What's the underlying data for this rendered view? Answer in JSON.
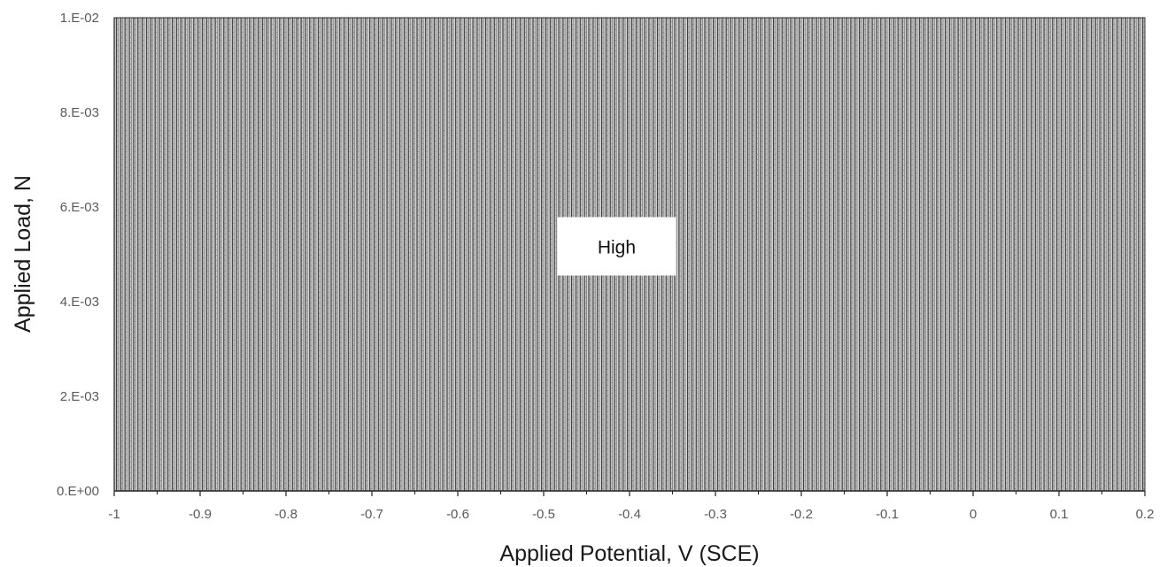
{
  "chart_data": {
    "type": "area",
    "xlabel": "Applied Potential, V (SCE)",
    "ylabel": "Applied Load, N",
    "xlim": [
      -1,
      0.2
    ],
    "ylim": [
      0,
      0.01
    ],
    "x_ticks": [
      -1,
      -0.9,
      -0.8,
      -0.7,
      -0.6,
      -0.5,
      -0.4,
      -0.3,
      -0.2,
      -0.1,
      0,
      0.1,
      0.2
    ],
    "x_tick_labels": [
      "-1",
      "-0.9",
      "-0.8",
      "-0.7",
      "-0.6",
      "-0.5",
      "-0.4",
      "-0.3",
      "-0.2",
      "-0.1",
      "0",
      "0.1",
      "0.2"
    ],
    "y_ticks": [
      0,
      0.002,
      0.004,
      0.006,
      0.008,
      0.01
    ],
    "y_tick_labels": [
      "0.E+00",
      "2.E-03",
      "4.E-03",
      "6.E-03",
      "8.E-03",
      "1.E-02"
    ],
    "regions": [
      {
        "label": "High",
        "x_range": [
          -1,
          0.2
        ],
        "y_range": [
          0,
          0.01
        ],
        "fill": "hatched-gray"
      }
    ],
    "annotations": [
      {
        "text": "High",
        "x": -0.415,
        "y": 0.00515
      }
    ],
    "grid": false
  },
  "colors": {
    "hatch_dark": "#3c3c3c",
    "hatch_mid": "#8a8a8a",
    "hatch_bg": "#d4d4d4",
    "axis": "#222222"
  }
}
